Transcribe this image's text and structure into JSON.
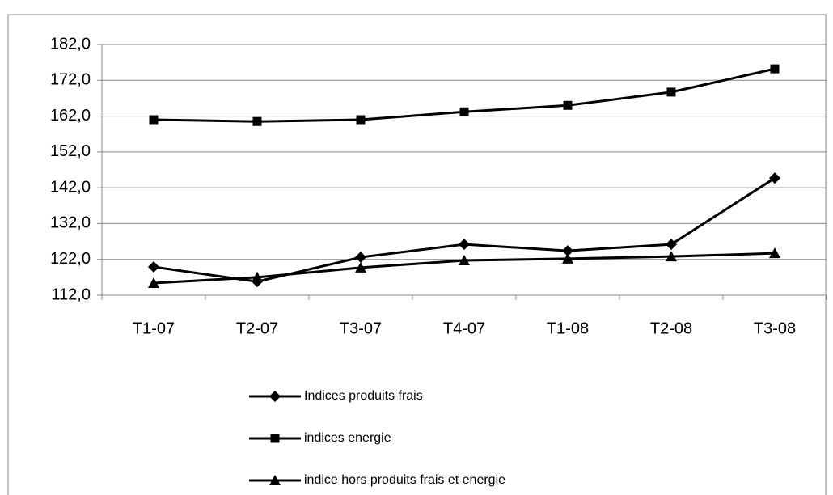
{
  "chart_data": {
    "type": "line",
    "categories": [
      "T1-07",
      "T2-07",
      "T3-07",
      "T4-07",
      "T1-08",
      "T2-08",
      "T3-08"
    ],
    "series": [
      {
        "name": "Indices produits frais",
        "color": "#000000",
        "marker": "diamond",
        "values": [
          119.9,
          115.8,
          122.6,
          126.2,
          124.4,
          126.2,
          144.7
        ]
      },
      {
        "name": "indices energie",
        "color": "#000000",
        "marker": "square",
        "values": [
          161.0,
          160.5,
          161.0,
          163.2,
          165.0,
          168.7,
          175.2
        ]
      },
      {
        "name": "indice hors produits frais et energie",
        "color": "#000000",
        "marker": "triangle",
        "values": [
          115.4,
          117.0,
          119.7,
          121.7,
          122.2,
          122.8,
          123.7
        ]
      }
    ],
    "ylim": [
      112,
      182
    ],
    "yticks": [
      {
        "value": 112,
        "label": "112,0"
      },
      {
        "value": 122,
        "label": "122,0"
      },
      {
        "value": 132,
        "label": "132,0"
      },
      {
        "value": 142,
        "label": "142,0"
      },
      {
        "value": 152,
        "label": "152,0"
      },
      {
        "value": 162,
        "label": "162,0"
      },
      {
        "value": 172,
        "label": "172,0"
      },
      {
        "value": 182,
        "label": "182,0"
      }
    ],
    "grid": true,
    "legend": "bottom"
  }
}
